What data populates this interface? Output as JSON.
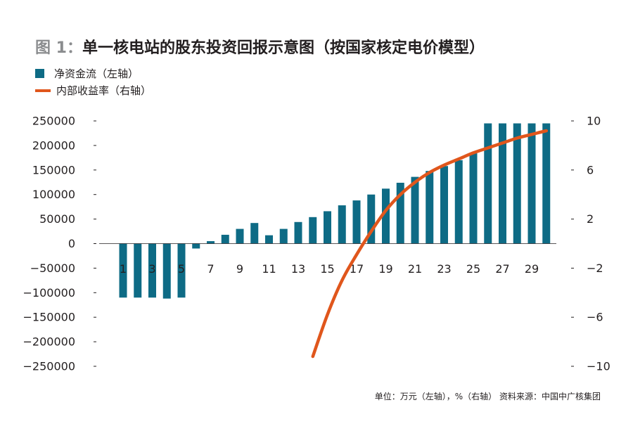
{
  "title": {
    "figure_label": "图 1：",
    "text": "单一核电站的股东投资回报示意图（按国家核定电价模型）"
  },
  "legend": [
    {
      "label": "净资金流（左轴）",
      "color": "#0e6b85",
      "kind": "bar"
    },
    {
      "label": "内部收益率（右轴）",
      "color": "#e0561c",
      "kind": "line"
    }
  ],
  "footnote": "单位：万元（左轴），%（右轴） 资料来源：中国中广核集团",
  "chart_data": {
    "type": "bar",
    "categories": [
      1,
      2,
      3,
      4,
      5,
      6,
      7,
      8,
      9,
      10,
      11,
      12,
      13,
      14,
      15,
      16,
      17,
      18,
      19,
      20,
      21,
      22,
      23,
      24,
      25,
      26,
      27,
      28,
      29,
      30
    ],
    "x_tick_labels": [
      "1",
      "3",
      "5",
      "7",
      "9",
      "11",
      "13",
      "15",
      "17",
      "19",
      "21",
      "23",
      "25",
      "27",
      "29"
    ],
    "series": [
      {
        "name": "净资金流（左轴）",
        "axis": "left",
        "type": "bar",
        "color": "#0e6b85",
        "values": [
          -110000,
          -110000,
          -110000,
          -112000,
          -110000,
          -10000,
          5000,
          18000,
          30000,
          42000,
          17000,
          30000,
          44000,
          54000,
          66000,
          78000,
          88000,
          100000,
          112000,
          124000,
          136000,
          148000,
          158000,
          170000,
          184000,
          245000,
          245000,
          245000,
          245000,
          245000
        ]
      },
      {
        "name": "内部收益率（右轴）",
        "axis": "right",
        "type": "line",
        "color": "#e0561c",
        "x": [
          14,
          15,
          16,
          17,
          18,
          19,
          20,
          21,
          22,
          23,
          24,
          25,
          26,
          27,
          28,
          29,
          30
        ],
        "values": [
          -9.2,
          -5.8,
          -3.0,
          -0.9,
          1.0,
          2.7,
          4.0,
          5.0,
          5.8,
          6.4,
          6.9,
          7.4,
          7.8,
          8.2,
          8.6,
          8.9,
          9.2
        ]
      }
    ],
    "y_left": {
      "min": -250000,
      "max": 250000,
      "ticks": [
        "250000",
        "200000",
        "150000",
        "100000",
        "50000",
        "0",
        "−50000",
        "−100000",
        "−150000",
        "−200000",
        "−250000"
      ]
    },
    "y_right": {
      "min": -10,
      "max": 10,
      "ticks": [
        "10",
        "6",
        "2",
        "−2",
        "−6",
        "−10"
      ]
    },
    "grid": false,
    "legend_position": "top-left"
  }
}
